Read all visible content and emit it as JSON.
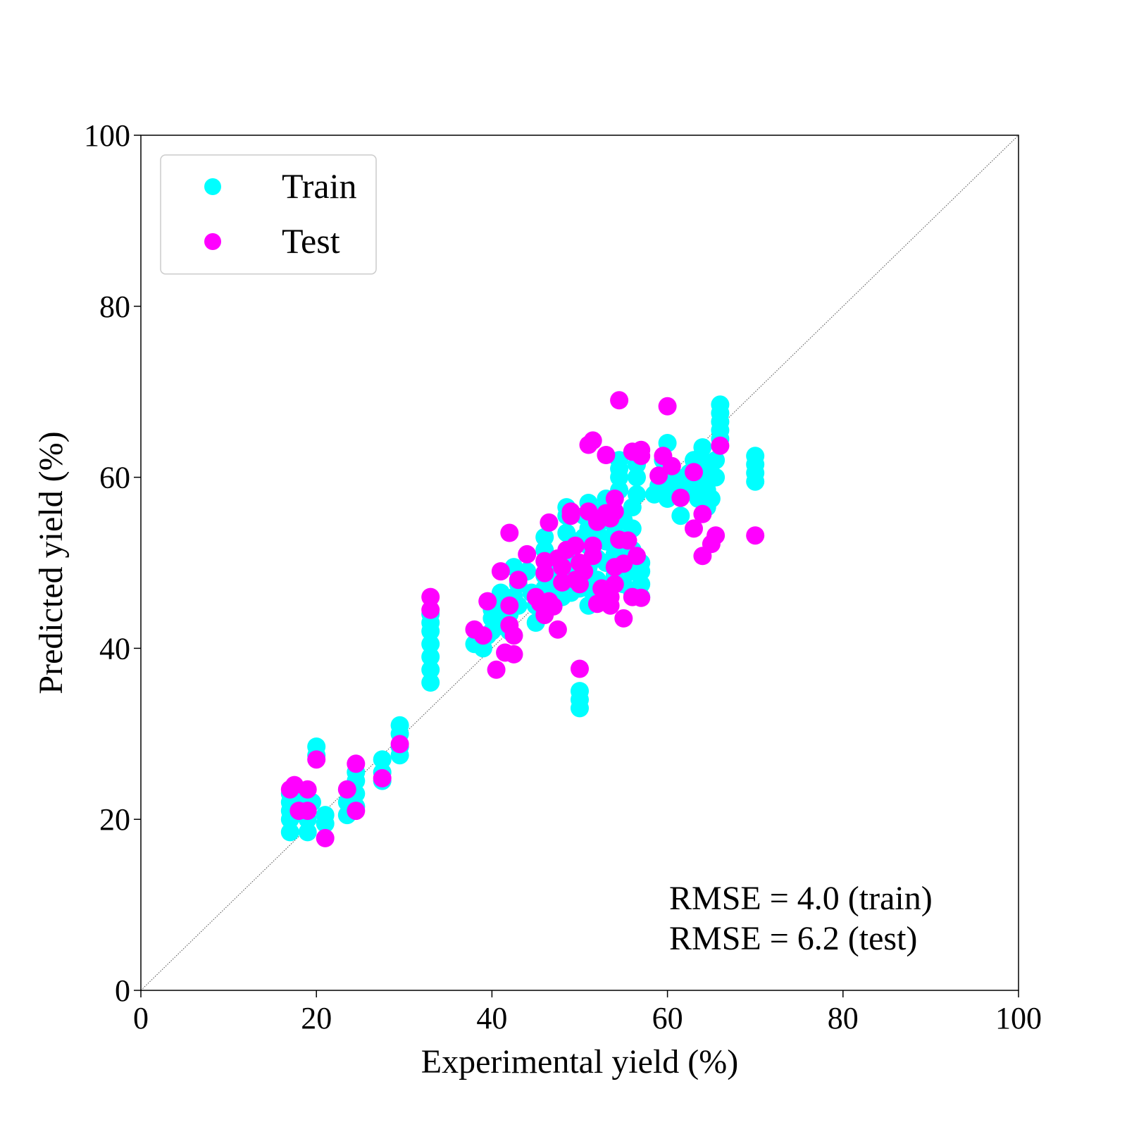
{
  "chart_data": {
    "type": "scatter",
    "title": "",
    "xlabel": "Experimental yield (%)",
    "ylabel": "Predicted yield (%)",
    "xlim": [
      0,
      100
    ],
    "ylim": [
      0,
      100
    ],
    "xticks": [
      "0",
      "20",
      "40",
      "60",
      "80",
      "100"
    ],
    "yticks": [
      "0",
      "20",
      "40",
      "60",
      "80",
      "100"
    ],
    "grid": false,
    "legend_position": "top-left",
    "identity_line": true,
    "annotations": [
      "RMSE = 4.0 (train)",
      "RMSE = 6.2 (test)"
    ],
    "series": [
      {
        "name": "Train",
        "color": "#00ffff",
        "points": [
          [
            17,
            18.5
          ],
          [
            17,
            20
          ],
          [
            17,
            21
          ],
          [
            17,
            22
          ],
          [
            17,
            23
          ],
          [
            17.5,
            22.5
          ],
          [
            18,
            21
          ],
          [
            18.5,
            22
          ],
          [
            19,
            18.5
          ],
          [
            19,
            20
          ],
          [
            19,
            21.5
          ],
          [
            19.5,
            22
          ],
          [
            20,
            27.5
          ],
          [
            20,
            28.5
          ],
          [
            21,
            19.5
          ],
          [
            21,
            20.5
          ],
          [
            23.5,
            20.5
          ],
          [
            23.5,
            22
          ],
          [
            24.5,
            21.5
          ],
          [
            24.5,
            23
          ],
          [
            24.5,
            24.5
          ],
          [
            24.5,
            25.5
          ],
          [
            27.5,
            24.5
          ],
          [
            27.5,
            25.5
          ],
          [
            27.5,
            27
          ],
          [
            29.5,
            27.5
          ],
          [
            29.5,
            28.5
          ],
          [
            29.5,
            30
          ],
          [
            29.5,
            31
          ],
          [
            33,
            36
          ],
          [
            33,
            37.5
          ],
          [
            33,
            39
          ],
          [
            33,
            40.5
          ],
          [
            33,
            42
          ],
          [
            33,
            43
          ],
          [
            33,
            44
          ],
          [
            38,
            40.5
          ],
          [
            38.5,
            41
          ],
          [
            39,
            40
          ],
          [
            39.5,
            41.5
          ],
          [
            40,
            42
          ],
          [
            40,
            43.5
          ],
          [
            40,
            44.5
          ],
          [
            40.5,
            42.5
          ],
          [
            41,
            45
          ],
          [
            41,
            46.5
          ],
          [
            41.5,
            43
          ],
          [
            42,
            42
          ],
          [
            42,
            44
          ],
          [
            42.5,
            46
          ],
          [
            42.5,
            49.5
          ],
          [
            43,
            45
          ],
          [
            43,
            47.5
          ],
          [
            44,
            49
          ],
          [
            44.5,
            46.5
          ],
          [
            45,
            43
          ],
          [
            45,
            45
          ],
          [
            45.5,
            46
          ],
          [
            46,
            47
          ],
          [
            46,
            48.5
          ],
          [
            46,
            51.5
          ],
          [
            46,
            53
          ],
          [
            47,
            45
          ],
          [
            47,
            47.5
          ],
          [
            47.5,
            49
          ],
          [
            48,
            46
          ],
          [
            48,
            48
          ],
          [
            48.5,
            51
          ],
          [
            48.5,
            53.5
          ],
          [
            48.5,
            55.5
          ],
          [
            48.5,
            56.5
          ],
          [
            49,
            46.5
          ],
          [
            49,
            48.5
          ],
          [
            49.5,
            50
          ],
          [
            49.5,
            52.5
          ],
          [
            50,
            33
          ],
          [
            50,
            34
          ],
          [
            50,
            35
          ],
          [
            50,
            47
          ],
          [
            50.5,
            53
          ],
          [
            50.5,
            55.5
          ],
          [
            51,
            45
          ],
          [
            51,
            47
          ],
          [
            51,
            49.5
          ],
          [
            51,
            52
          ],
          [
            51,
            54
          ],
          [
            51,
            57
          ],
          [
            52,
            48
          ],
          [
            52,
            50.5
          ],
          [
            52,
            53.5
          ],
          [
            52,
            56
          ],
          [
            53,
            47
          ],
          [
            53,
            50
          ],
          [
            53,
            52.5
          ],
          [
            53,
            55
          ],
          [
            53,
            57.5
          ],
          [
            54,
            48.5
          ],
          [
            54,
            51
          ],
          [
            54,
            53.5
          ],
          [
            54,
            56
          ],
          [
            54.5,
            58.5
          ],
          [
            54.5,
            60
          ],
          [
            54.5,
            61
          ],
          [
            54.5,
            62
          ],
          [
            55,
            47.5
          ],
          [
            55,
            50
          ],
          [
            55,
            52.5
          ],
          [
            55,
            55
          ],
          [
            56,
            46.5
          ],
          [
            56,
            49
          ],
          [
            56,
            51.5
          ],
          [
            56,
            54
          ],
          [
            56,
            56.5
          ],
          [
            56.5,
            58
          ],
          [
            56.5,
            60
          ],
          [
            56.5,
            61.5
          ],
          [
            57,
            46
          ],
          [
            57,
            47.5
          ],
          [
            57,
            49
          ],
          [
            57,
            50
          ],
          [
            58.5,
            58
          ],
          [
            59,
            59
          ],
          [
            59.5,
            60.5
          ],
          [
            59.5,
            62
          ],
          [
            60,
            64
          ],
          [
            60,
            57.5
          ],
          [
            60.5,
            59
          ],
          [
            61,
            60
          ],
          [
            61.5,
            55.5
          ],
          [
            62,
            58.5
          ],
          [
            62.5,
            60.5
          ],
          [
            63,
            62
          ],
          [
            63,
            59
          ],
          [
            63.5,
            57.5
          ],
          [
            64,
            60
          ],
          [
            64,
            62
          ],
          [
            64,
            63.5
          ],
          [
            64.5,
            56.5
          ],
          [
            64.5,
            58.5
          ],
          [
            65,
            57.5
          ],
          [
            65,
            60
          ],
          [
            65,
            61.5
          ],
          [
            65.5,
            60
          ],
          [
            65.5,
            62
          ],
          [
            66,
            64.5
          ],
          [
            66,
            65.5
          ],
          [
            66,
            66.5
          ],
          [
            66,
            67.5
          ],
          [
            66,
            68.5
          ],
          [
            70,
            59.5
          ],
          [
            70,
            60.5
          ],
          [
            70,
            61.5
          ],
          [
            70,
            62.5
          ]
        ]
      },
      {
        "name": "Test",
        "color": "#ff00ff",
        "points": [
          [
            17,
            23.5
          ],
          [
            17.5,
            24
          ],
          [
            18,
            21
          ],
          [
            19,
            23.5
          ],
          [
            19,
            21
          ],
          [
            20,
            27
          ],
          [
            21,
            17.8
          ],
          [
            23.5,
            23.5
          ],
          [
            24.5,
            26.5
          ],
          [
            24.5,
            21
          ],
          [
            27.5,
            24.8
          ],
          [
            29.5,
            28.8
          ],
          [
            33,
            46
          ],
          [
            33,
            44.5
          ],
          [
            38,
            42.2
          ],
          [
            39,
            41.5
          ],
          [
            39.5,
            45.5
          ],
          [
            40.5,
            37.5
          ],
          [
            41,
            49
          ],
          [
            41.5,
            39.5
          ],
          [
            42,
            53.5
          ],
          [
            42,
            45
          ],
          [
            42,
            42.7
          ],
          [
            42.5,
            39.3
          ],
          [
            42.5,
            41.5
          ],
          [
            43,
            48
          ],
          [
            44,
            51
          ],
          [
            45,
            46
          ],
          [
            45.5,
            45.3
          ],
          [
            46,
            48.8
          ],
          [
            46,
            50.2
          ],
          [
            46.5,
            54.7
          ],
          [
            46,
            43.9
          ],
          [
            46.5,
            45.5
          ],
          [
            47,
            44.9
          ],
          [
            47.5,
            50.5
          ],
          [
            48,
            47.7
          ],
          [
            48,
            49.5
          ],
          [
            47.5,
            42.2
          ],
          [
            48.5,
            51.5
          ],
          [
            49,
            55.5
          ],
          [
            49,
            56
          ],
          [
            49.5,
            52
          ],
          [
            49.5,
            48
          ],
          [
            50,
            50
          ],
          [
            50,
            47.5
          ],
          [
            50,
            37.6
          ],
          [
            50.5,
            49
          ],
          [
            51,
            56
          ],
          [
            51,
            63.8
          ],
          [
            51.5,
            64.3
          ],
          [
            51.5,
            52
          ],
          [
            51.5,
            50.8
          ],
          [
            52,
            54.8
          ],
          [
            52,
            45.2
          ],
          [
            52.5,
            47
          ],
          [
            53,
            55.8
          ],
          [
            53,
            62.6
          ],
          [
            53.5,
            55.2
          ],
          [
            53.5,
            46
          ],
          [
            53.5,
            45
          ],
          [
            54,
            49.5
          ],
          [
            54,
            57.5
          ],
          [
            54,
            56
          ],
          [
            54.5,
            52.7
          ],
          [
            54,
            47.5
          ],
          [
            54.5,
            69
          ],
          [
            55,
            49.9
          ],
          [
            55.5,
            52.6
          ],
          [
            55,
            43.5
          ],
          [
            56,
            63
          ],
          [
            56,
            46
          ],
          [
            56.5,
            50.8
          ],
          [
            57,
            62.5
          ],
          [
            57,
            63.2
          ],
          [
            57,
            45.9
          ],
          [
            59,
            60.2
          ],
          [
            59.5,
            62.5
          ],
          [
            60,
            68.3
          ],
          [
            60.5,
            61.3
          ],
          [
            61.5,
            57.6
          ],
          [
            63,
            60.6
          ],
          [
            63,
            54
          ],
          [
            64,
            50.8
          ],
          [
            64,
            55.7
          ],
          [
            65,
            52.2
          ],
          [
            65.5,
            53.2
          ],
          [
            66,
            63.7
          ],
          [
            70,
            53.2
          ]
        ]
      }
    ]
  }
}
